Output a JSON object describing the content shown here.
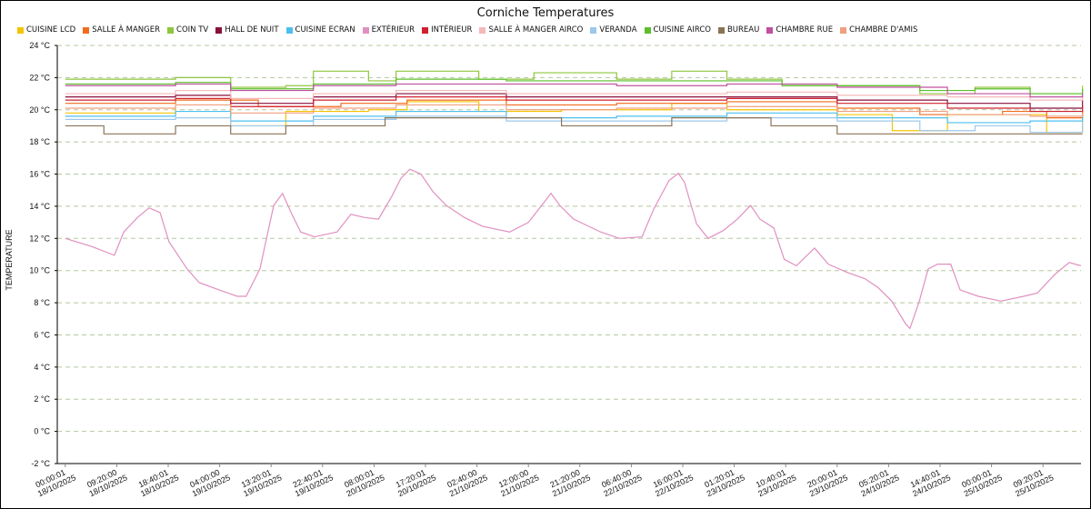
{
  "chart_data": {
    "type": "line",
    "title": "Corniche Temperatures",
    "xlabel": "",
    "ylabel": "TEMPERATURE",
    "ylim": [
      -2,
      24
    ],
    "yticks": [
      -2,
      0,
      2,
      4,
      6,
      8,
      10,
      12,
      14,
      16,
      18,
      20,
      22,
      24
    ],
    "ytick_suffix": " °C",
    "x_unit": "hours since 18/10/2025 00:00:01",
    "xlim": [
      0,
      184.5
    ],
    "xticks": [
      {
        "h": 0,
        "t": "00:00:01",
        "d": "18/10/2025"
      },
      {
        "h": 9.333,
        "t": "09:20:00",
        "d": "18/10/2025"
      },
      {
        "h": 18.667,
        "t": "18:40:01",
        "d": "18/10/2025"
      },
      {
        "h": 28,
        "t": "04:00:00",
        "d": "19/10/2025"
      },
      {
        "h": 37.333,
        "t": "13:20:01",
        "d": "19/10/2025"
      },
      {
        "h": 46.667,
        "t": "22:40:01",
        "d": "19/10/2025"
      },
      {
        "h": 56,
        "t": "08:00:01",
        "d": "20/10/2025"
      },
      {
        "h": 65.333,
        "t": "17:20:01",
        "d": "20/10/2025"
      },
      {
        "h": 74.667,
        "t": "02:40:00",
        "d": "21/10/2025"
      },
      {
        "h": 84,
        "t": "12:00:00",
        "d": "21/10/2025"
      },
      {
        "h": 93.333,
        "t": "21:20:00",
        "d": "21/10/2025"
      },
      {
        "h": 102.667,
        "t": "06:40:00",
        "d": "22/10/2025"
      },
      {
        "h": 112,
        "t": "16:00:01",
        "d": "22/10/2025"
      },
      {
        "h": 121.333,
        "t": "01:20:01",
        "d": "23/10/2025"
      },
      {
        "h": 130.667,
        "t": "10:40:01",
        "d": "23/10/2025"
      },
      {
        "h": 140,
        "t": "20:00:01",
        "d": "23/10/2025"
      },
      {
        "h": 149.333,
        "t": "05:20:01",
        "d": "24/10/2025"
      },
      {
        "h": 158.667,
        "t": "14:40:01",
        "d": "24/10/2025"
      },
      {
        "h": 168,
        "t": "00:00:01",
        "d": "25/10/2025"
      },
      {
        "h": 177.333,
        "t": "09:20:01",
        "d": "25/10/2025"
      }
    ],
    "grid": true,
    "legend_position": "top",
    "series": [
      {
        "name": "Cuisine LCD",
        "color": "#f5c400",
        "x": [
          0,
          20,
          30,
          40,
          55,
          62,
          75,
          90,
          110,
          120,
          140,
          150,
          160,
          170,
          178,
          184.5
        ],
        "y": [
          19.8,
          20.3,
          19.0,
          19.9,
          20.0,
          20.5,
          19.9,
          20.0,
          20.4,
          20.0,
          19.7,
          18.7,
          19.7,
          19.7,
          18.6,
          19.8
        ]
      },
      {
        "name": "Salle à manger",
        "color": "#f26b1d",
        "x": [
          0,
          20,
          35,
          50,
          62,
          80,
          100,
          120,
          140,
          155,
          170,
          178,
          184.5
        ],
        "y": [
          20.4,
          20.6,
          20.2,
          20.4,
          20.6,
          20.3,
          20.4,
          20.5,
          20.1,
          19.7,
          19.9,
          19.5,
          20.0
        ]
      },
      {
        "name": "Coin TV",
        "color": "#8fc63d",
        "x": [
          0,
          10,
          20,
          30,
          40,
          45,
          55,
          60,
          75,
          85,
          100,
          110,
          120,
          130,
          145,
          155,
          165,
          175,
          184.5
        ],
        "y": [
          21.9,
          21.9,
          22.0,
          21.4,
          21.5,
          22.4,
          21.8,
          22.4,
          21.9,
          22.3,
          21.9,
          22.4,
          21.9,
          21.5,
          21.5,
          21.0,
          21.4,
          21.0,
          21.5
        ]
      },
      {
        "name": "Hall de nuit",
        "color": "#8b0f3c",
        "x": [
          0,
          20,
          30,
          45,
          60,
          80,
          100,
          120,
          140,
          160,
          175,
          184.5
        ],
        "y": [
          20.8,
          20.9,
          20.4,
          20.8,
          21.0,
          20.8,
          20.8,
          20.8,
          20.6,
          20.4,
          20.1,
          20.6
        ]
      },
      {
        "name": "Cuisine Ecran",
        "color": "#4dbfef",
        "x": [
          0,
          20,
          30,
          45,
          60,
          80,
          100,
          120,
          140,
          160,
          175,
          184.5
        ],
        "y": [
          19.6,
          19.9,
          19.3,
          19.6,
          19.9,
          19.5,
          19.6,
          19.8,
          19.5,
          19.2,
          19.3,
          19.6
        ]
      },
      {
        "name": "Extérieur",
        "color": "#e090c0",
        "x": [
          0,
          4.8,
          8.9,
          10.6,
          13.1,
          15.2,
          17.2,
          18.8,
          22.1,
          24.3,
          28.7,
          31.2,
          32.8,
          35.3,
          37.8,
          39.4,
          41.1,
          42.7,
          45.2,
          49.3,
          51.8,
          54.3,
          56.8,
          59.2,
          60.9,
          62.5,
          64.5,
          66.7,
          69.1,
          72.4,
          75.7,
          80.6,
          84,
          86.4,
          88.1,
          89.7,
          92.2,
          97.1,
          100.5,
          104.6,
          106.7,
          109.5,
          111.2,
          112.3,
          114.5,
          116.6,
          119.4,
          121.9,
          124.3,
          126,
          128.5,
          130.4,
          132.6,
          135.9,
          138.4,
          141.7,
          145,
          147.4,
          149.9,
          152.4,
          153.2,
          154.9,
          156.5,
          158.2,
          160.6,
          162.3,
          165.6,
          169.7,
          173.8,
          176.3,
          179.6,
          182.1,
          184.2
        ],
        "y": [
          12.0,
          11.5,
          10.95,
          12.4,
          13.3,
          13.9,
          13.6,
          11.8,
          10.1,
          9.25,
          8.7,
          8.4,
          8.4,
          10.1,
          14.05,
          14.8,
          13.5,
          12.4,
          12.1,
          12.4,
          13.5,
          13.3,
          13.2,
          14.6,
          15.75,
          16.3,
          16.0,
          14.9,
          14.05,
          13.3,
          12.75,
          12.4,
          13.0,
          14.05,
          14.8,
          14.05,
          13.2,
          12.4,
          12.0,
          12.1,
          13.8,
          15.6,
          16.05,
          15.5,
          12.9,
          12.0,
          12.5,
          13.2,
          14.05,
          13.2,
          12.65,
          10.7,
          10.3,
          11.4,
          10.4,
          9.9,
          9.5,
          8.95,
          8.1,
          6.7,
          6.4,
          8.1,
          10.1,
          10.4,
          10.4,
          8.8,
          8.4,
          8.1,
          8.4,
          8.6,
          9.8,
          10.5,
          10.3
        ]
      },
      {
        "name": "Intérieur",
        "color": "#d0202f",
        "x": [
          0,
          20,
          30,
          45,
          60,
          80,
          100,
          120,
          140,
          160,
          175,
          184.5
        ],
        "y": [
          20.6,
          20.7,
          20.2,
          20.6,
          20.8,
          20.6,
          20.6,
          20.7,
          20.4,
          20.1,
          19.9,
          20.2
        ]
      },
      {
        "name": "Salle à manger airco",
        "color": "#f5b8b8",
        "x": [
          0,
          20,
          30,
          45,
          60,
          80,
          100,
          120,
          140,
          160,
          175,
          184.5
        ],
        "y": [
          21.0,
          21.2,
          20.7,
          21.0,
          21.2,
          21.0,
          21.0,
          21.1,
          20.9,
          20.8,
          20.6,
          20.9
        ]
      },
      {
        "name": "Veranda",
        "color": "#9cc8ea",
        "x": [
          0,
          20,
          30,
          45,
          60,
          80,
          100,
          120,
          140,
          155,
          165,
          175,
          184.5
        ],
        "y": [
          19.4,
          19.5,
          19.0,
          19.4,
          19.6,
          19.3,
          19.3,
          19.5,
          19.3,
          18.7,
          19.0,
          18.6,
          19.3
        ]
      },
      {
        "name": "Cuisine airco",
        "color": "#5bbf2a",
        "x": [
          0,
          20,
          30,
          45,
          60,
          80,
          100,
          120,
          130,
          145,
          155,
          165,
          175,
          184.5
        ],
        "y": [
          21.6,
          21.7,
          21.3,
          21.6,
          21.9,
          21.8,
          21.8,
          21.8,
          21.5,
          21.5,
          21.2,
          21.3,
          21.0,
          21.3
        ]
      },
      {
        "name": "Bureau",
        "color": "#8b7355",
        "x": [
          0,
          7,
          20,
          30,
          40,
          50,
          58,
          75,
          90,
          110,
          128,
          140,
          155,
          170,
          184.5
        ],
        "y": [
          19.0,
          18.5,
          19.0,
          18.5,
          19.0,
          19.0,
          19.5,
          19.5,
          19.0,
          19.5,
          19.0,
          18.5,
          18.5,
          18.5,
          18.5
        ]
      },
      {
        "name": "Chambre rue",
        "color": "#c050a0",
        "x": [
          0,
          20,
          30,
          45,
          60,
          80,
          100,
          120,
          140,
          160,
          175,
          184.5
        ],
        "y": [
          21.5,
          21.6,
          21.2,
          21.5,
          21.6,
          21.6,
          21.5,
          21.6,
          21.4,
          21.0,
          20.8,
          21.0
        ]
      },
      {
        "name": "Chambre d'amis",
        "color": "#f0a080",
        "x": [
          0,
          20,
          30,
          45,
          60,
          80,
          100,
          120,
          140,
          160,
          175,
          184.5
        ],
        "y": [
          20.1,
          20.3,
          19.8,
          20.1,
          20.3,
          20.0,
          20.1,
          20.2,
          19.9,
          19.7,
          19.6,
          19.8
        ]
      }
    ]
  }
}
